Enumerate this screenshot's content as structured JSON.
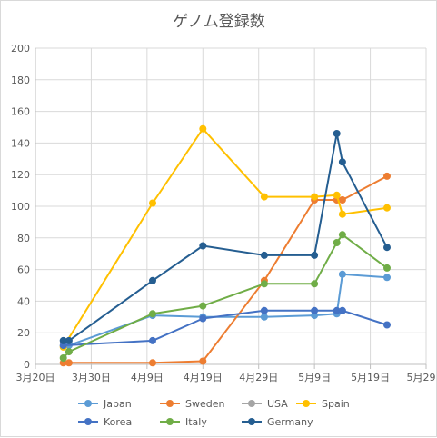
{
  "chart_data": {
    "type": "line",
    "title": "ゲノム登録数",
    "xlabel": "",
    "ylabel": "",
    "x_axis": {
      "type": "date",
      "min": "2020-03-20",
      "max": "2020-05-29",
      "tick_labels": [
        "3月20日",
        "3月30日",
        "4月9日",
        "4月19日",
        "4月29日",
        "5月9日",
        "5月19日",
        "5月29日"
      ]
    },
    "y_axis": {
      "min": 0,
      "max": 200,
      "step": 20,
      "tick_labels": [
        "0",
        "20",
        "40",
        "60",
        "80",
        "100",
        "120",
        "140",
        "160",
        "180",
        "200"
      ]
    },
    "grid": true,
    "legend_position": "bottom",
    "series": [
      {
        "name": "Japan",
        "color": "#5B9BD5",
        "points": [
          [
            "2020-03-26",
            12
          ],
          [
            "2020-04-10",
            31
          ],
          [
            "2020-04-19",
            30
          ],
          [
            "2020-04-30",
            30
          ],
          [
            "2020-05-09",
            31
          ],
          [
            "2020-05-13",
            32
          ],
          [
            "2020-05-14",
            57
          ],
          [
            "2020-05-22",
            55
          ]
        ]
      },
      {
        "name": "Sweden",
        "color": "#ED7D31",
        "points": [
          [
            "2020-03-25",
            1
          ],
          [
            "2020-03-26",
            1
          ],
          [
            "2020-04-10",
            1
          ],
          [
            "2020-04-19",
            2
          ],
          [
            "2020-04-30",
            53
          ],
          [
            "2020-05-09",
            104
          ],
          [
            "2020-05-13",
            104
          ],
          [
            "2020-05-14",
            104
          ],
          [
            "2020-05-22",
            119
          ]
        ]
      },
      {
        "name": "USA",
        "color": "#A5A5A5",
        "points": []
      },
      {
        "name": "Spain",
        "color": "#FFC000",
        "points": [
          [
            "2020-03-25",
            11
          ],
          [
            "2020-04-10",
            102
          ],
          [
            "2020-04-19",
            149
          ],
          [
            "2020-04-30",
            106
          ],
          [
            "2020-05-09",
            106
          ],
          [
            "2020-05-13",
            107
          ],
          [
            "2020-05-14",
            95
          ],
          [
            "2020-05-22",
            99
          ]
        ]
      },
      {
        "name": "Korea",
        "color": "#4472C4",
        "points": [
          [
            "2020-03-25",
            12
          ],
          [
            "2020-04-10",
            15
          ],
          [
            "2020-04-19",
            29
          ],
          [
            "2020-04-30",
            34
          ],
          [
            "2020-05-09",
            34
          ],
          [
            "2020-05-13",
            34
          ],
          [
            "2020-05-14",
            34
          ],
          [
            "2020-05-22",
            25
          ]
        ]
      },
      {
        "name": "Italy",
        "color": "#70AD47",
        "points": [
          [
            "2020-03-25",
            4
          ],
          [
            "2020-03-26",
            8
          ],
          [
            "2020-04-10",
            32
          ],
          [
            "2020-04-19",
            37
          ],
          [
            "2020-04-30",
            51
          ],
          [
            "2020-05-09",
            51
          ],
          [
            "2020-05-13",
            77
          ],
          [
            "2020-05-14",
            82
          ],
          [
            "2020-05-22",
            61
          ]
        ]
      },
      {
        "name": "Germany",
        "color": "#255E91",
        "points": [
          [
            "2020-03-25",
            15
          ],
          [
            "2020-03-26",
            15
          ],
          [
            "2020-04-10",
            53
          ],
          [
            "2020-04-19",
            75
          ],
          [
            "2020-04-30",
            69
          ],
          [
            "2020-05-09",
            69
          ],
          [
            "2020-05-13",
            146
          ],
          [
            "2020-05-14",
            128
          ],
          [
            "2020-05-22",
            74
          ]
        ]
      }
    ],
    "legend_rows": [
      [
        "Japan",
        "Sweden",
        "USA",
        "Spain"
      ],
      [
        "Korea",
        "Italy",
        "Germany"
      ]
    ]
  }
}
